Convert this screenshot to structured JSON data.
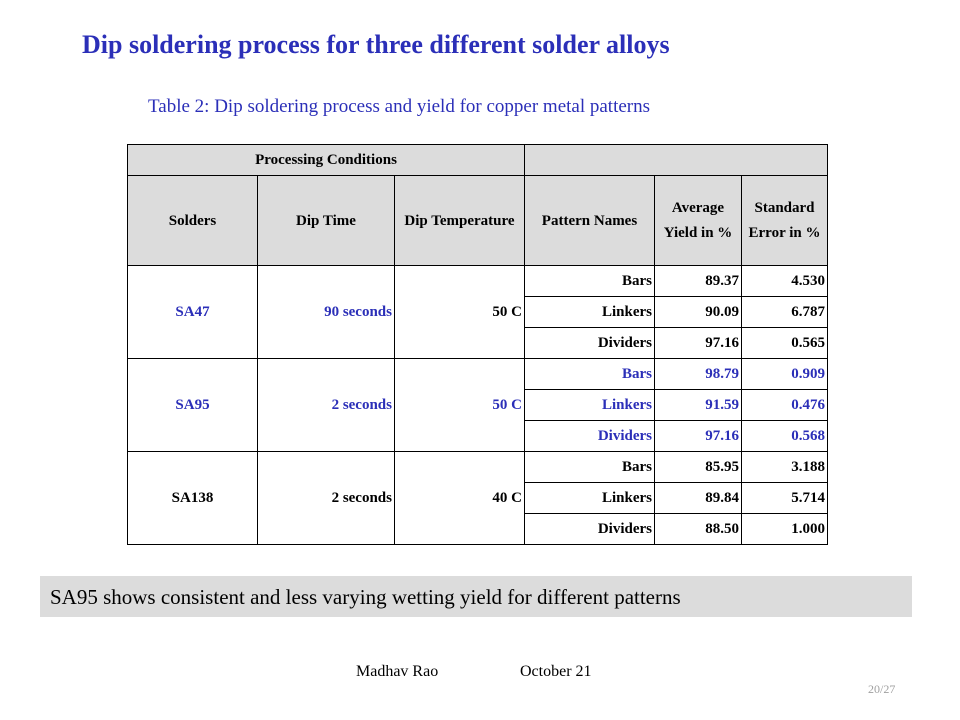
{
  "slide": {
    "title": "Dip soldering process for three different solder alloys",
    "caption": "Table 2: Dip soldering process and yield for copper metal patterns",
    "note": "SA95 shows consistent and less varying wetting yield for different patterns",
    "footer_author": "Madhav Rao",
    "footer_date": "October 21",
    "page_number": "20/27"
  },
  "table": {
    "group_header": "Processing Conditions",
    "headers": {
      "solders": "Solders",
      "dip_time": "Dip Time",
      "dip_temperature": "Dip Temperature",
      "pattern_names": "Pattern Names",
      "average_yield": "Average Yield in %",
      "standard_error": "Standard Error in %"
    },
    "groups": [
      {
        "solder": "SA47",
        "dip_time": "90 seconds",
        "dip_temperature": "50 C",
        "rows": [
          {
            "pattern": "Bars",
            "yield": "89.37",
            "error": "4.530"
          },
          {
            "pattern": "Linkers",
            "yield": "90.09",
            "error": "6.787"
          },
          {
            "pattern": "Dividers",
            "yield": "97.16",
            "error": "0.565"
          }
        ]
      },
      {
        "solder": "SA95",
        "dip_time": "2 seconds",
        "dip_temperature": "50 C",
        "rows": [
          {
            "pattern": "Bars",
            "yield": "98.79",
            "error": "0.909"
          },
          {
            "pattern": "Linkers",
            "yield": "91.59",
            "error": "0.476"
          },
          {
            "pattern": "Dividers",
            "yield": "97.16",
            "error": "0.568"
          }
        ]
      },
      {
        "solder": "SA138",
        "dip_time": "2 seconds",
        "dip_temperature": "40 C",
        "rows": [
          {
            "pattern": "Bars",
            "yield": "85.95",
            "error": "3.188"
          },
          {
            "pattern": "Linkers",
            "yield": "89.84",
            "error": "5.714"
          },
          {
            "pattern": "Dividers",
            "yield": "88.50",
            "error": "1.000"
          }
        ]
      }
    ]
  },
  "colors": {
    "accent_blue": "#2b2fb8",
    "header_gray": "#dcdcdc"
  }
}
